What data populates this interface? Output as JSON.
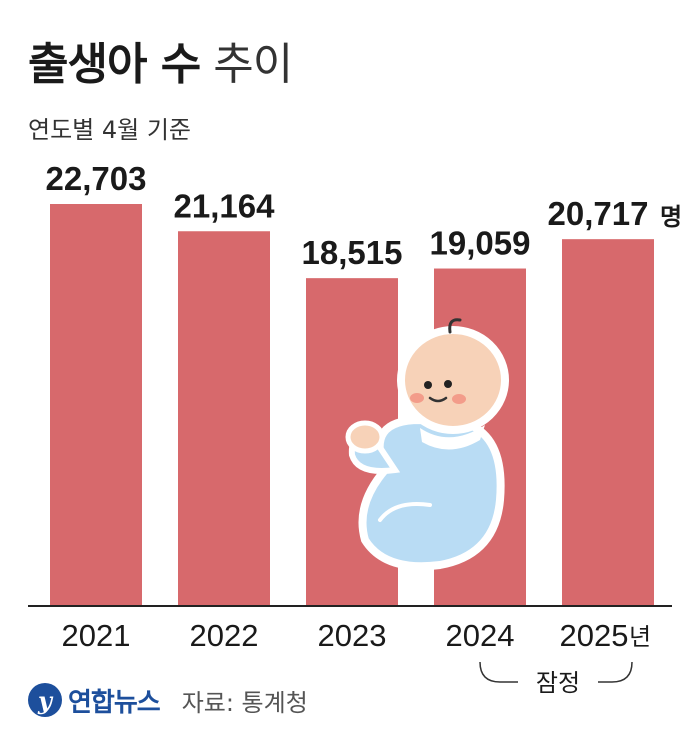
{
  "header": {
    "title_bold": "출생아 수",
    "title_light": "추이",
    "subtitle": "연도별 4월 기준"
  },
  "chart_data": {
    "type": "bar",
    "title": "출생아 수 추이",
    "subtitle": "연도별 4월 기준",
    "categories": [
      "2021",
      "2022",
      "2023",
      "2024",
      "2025"
    ],
    "values": [
      22703,
      21164,
      18515,
      19059,
      20717
    ],
    "value_labels": [
      "22,703",
      "21,164",
      "18,515",
      "19,059",
      "20,717"
    ],
    "value_unit": "명",
    "category_unit": "년",
    "annotation": "잠정",
    "annotation_covers": [
      "2024",
      "2025"
    ],
    "ylim": [
      0,
      22703
    ],
    "grid": false,
    "bar_color": "#d7696c"
  },
  "footer": {
    "logo_glyph": "y",
    "logo_text": "연합뉴스",
    "source": "자료: 통계청"
  },
  "colors": {
    "bar": "#d7696c",
    "logo": "#1d4f9c"
  }
}
